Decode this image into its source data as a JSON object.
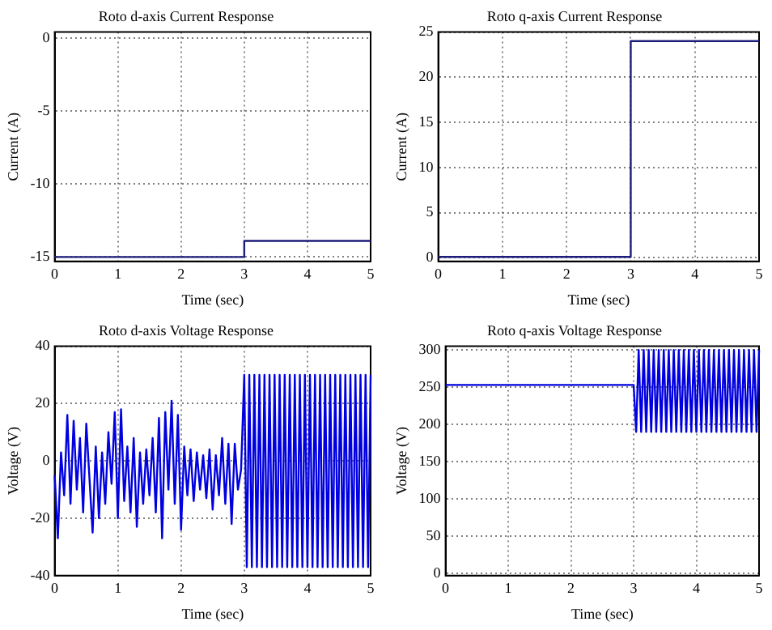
{
  "chart_data": [
    {
      "type": "line",
      "title": "Roto d-axis Current Response",
      "xlabel": "Time (sec)",
      "ylabel": "Current (A)",
      "x": [
        0,
        3,
        3,
        5
      ],
      "values": [
        -15,
        -15,
        -13.9,
        -13.9
      ],
      "color": "#1c1c7a",
      "xlim": [
        0,
        5
      ],
      "xticks": [
        0,
        1,
        2,
        3,
        4,
        5
      ],
      "ylim": [
        -15.3,
        0.4
      ],
      "yticks": [
        -15,
        -10,
        -5,
        0
      ],
      "grid": true
    },
    {
      "type": "line",
      "title": "Roto q-axis Current Response",
      "xlabel": "Time (sec)",
      "ylabel": "Current (A)",
      "x": [
        0,
        3,
        3,
        5
      ],
      "values": [
        0.1,
        0.1,
        24,
        24
      ],
      "color": "#1c1c7a",
      "xlim": [
        0,
        5
      ],
      "xticks": [
        0,
        1,
        2,
        3,
        4,
        5
      ],
      "ylim": [
        -0.4,
        25
      ],
      "yticks": [
        0,
        5,
        10,
        15,
        20,
        25
      ],
      "grid": true
    },
    {
      "type": "line",
      "title": "Roto d-axis Voltage Response",
      "xlabel": "Time (sec)",
      "ylabel": "Voltage (V)",
      "x": [
        0,
        0.05,
        0.1,
        0.15,
        0.2,
        0.25,
        0.3,
        0.35,
        0.4,
        0.45,
        0.5,
        0.55,
        0.6,
        0.65,
        0.7,
        0.75,
        0.8,
        0.85,
        0.9,
        0.95,
        1,
        1.05,
        1.1,
        1.15,
        1.2,
        1.25,
        1.3,
        1.35,
        1.4,
        1.45,
        1.5,
        1.55,
        1.6,
        1.65,
        1.7,
        1.75,
        1.8,
        1.85,
        1.9,
        1.95,
        2,
        2.05,
        2.1,
        2.15,
        2.2,
        2.25,
        2.3,
        2.35,
        2.4,
        2.45,
        2.5,
        2.55,
        2.6,
        2.65,
        2.7,
        2.75,
        2.8,
        2.85,
        2.9,
        2.95,
        3,
        3.04,
        3.08,
        3.12,
        3.16,
        3.2,
        3.24,
        3.28,
        3.32,
        3.36,
        3.4,
        3.44,
        3.48,
        3.52,
        3.56,
        3.6,
        3.64,
        3.68,
        3.72,
        3.76,
        3.8,
        3.84,
        3.88,
        3.92,
        3.96,
        4,
        4.04,
        4.08,
        4.12,
        4.16,
        4.2,
        4.24,
        4.28,
        4.32,
        4.36,
        4.4,
        4.44,
        4.48,
        4.52,
        4.56,
        4.6,
        4.64,
        4.68,
        4.72,
        4.76,
        4.8,
        4.84,
        4.88,
        4.92,
        4.96,
        5
      ],
      "values": [
        -5,
        -27,
        3,
        -12,
        16,
        -15,
        14,
        -10,
        8,
        -18,
        13,
        -6,
        -25,
        5,
        -20,
        3,
        -15,
        10,
        -8,
        17,
        -20,
        18,
        -14,
        5,
        -18,
        8,
        -23,
        3,
        -15,
        4,
        -12,
        8,
        -18,
        15,
        -27,
        17,
        -10,
        21,
        -15,
        16,
        -24,
        5,
        -12,
        4,
        -14,
        3,
        -10,
        2,
        -13,
        4,
        -17,
        2,
        -12,
        8,
        -15,
        6,
        -22,
        6,
        -10,
        -3,
        30,
        -37,
        30,
        -37,
        30,
        -37,
        30,
        -37,
        30,
        -37,
        30,
        -37,
        30,
        -37,
        30,
        -37,
        30,
        -37,
        30,
        -37,
        30,
        -37,
        30,
        -37,
        30,
        -37,
        30,
        -37,
        30,
        -37,
        30,
        -37,
        30,
        -37,
        30,
        -37,
        30,
        -37,
        30,
        -37,
        30,
        -37,
        30,
        -37,
        30,
        -37,
        30,
        -37,
        30,
        -37,
        30
      ],
      "color": "#0000e0",
      "xlim": [
        0,
        5
      ],
      "xticks": [
        0,
        1,
        2,
        3,
        4,
        5
      ],
      "ylim": [
        -40,
        40
      ],
      "yticks": [
        -40,
        -20,
        0,
        20,
        40
      ],
      "grid": true
    },
    {
      "type": "line",
      "title": "Roto q-axis Voltage Response",
      "xlabel": "Time (sec)",
      "ylabel": "Voltage (V)",
      "x": [
        0,
        3,
        3.04,
        3.08,
        3.12,
        3.16,
        3.2,
        3.24,
        3.28,
        3.32,
        3.36,
        3.4,
        3.44,
        3.48,
        3.52,
        3.56,
        3.6,
        3.64,
        3.68,
        3.72,
        3.76,
        3.8,
        3.84,
        3.88,
        3.92,
        3.96,
        4,
        4.04,
        4.08,
        4.12,
        4.16,
        4.2,
        4.24,
        4.28,
        4.32,
        4.36,
        4.4,
        4.44,
        4.48,
        4.52,
        4.56,
        4.6,
        4.64,
        4.68,
        4.72,
        4.76,
        4.8,
        4.84,
        4.88,
        4.92,
        4.96,
        5
      ],
      "values": [
        253,
        253,
        190,
        300,
        190,
        300,
        190,
        300,
        190,
        300,
        190,
        300,
        190,
        300,
        190,
        300,
        190,
        300,
        190,
        300,
        190,
        300,
        190,
        300,
        190,
        300,
        190,
        300,
        190,
        300,
        190,
        300,
        190,
        300,
        190,
        300,
        190,
        300,
        190,
        300,
        190,
        300,
        190,
        300,
        190,
        300,
        190,
        300,
        190,
        300,
        190,
        300
      ],
      "color": "#0000e0",
      "xlim": [
        0,
        5
      ],
      "xticks": [
        0,
        1,
        2,
        3,
        4,
        5
      ],
      "ylim": [
        -3,
        305
      ],
      "yticks": [
        0,
        50,
        100,
        150,
        200,
        250,
        300
      ],
      "grid": true
    }
  ]
}
